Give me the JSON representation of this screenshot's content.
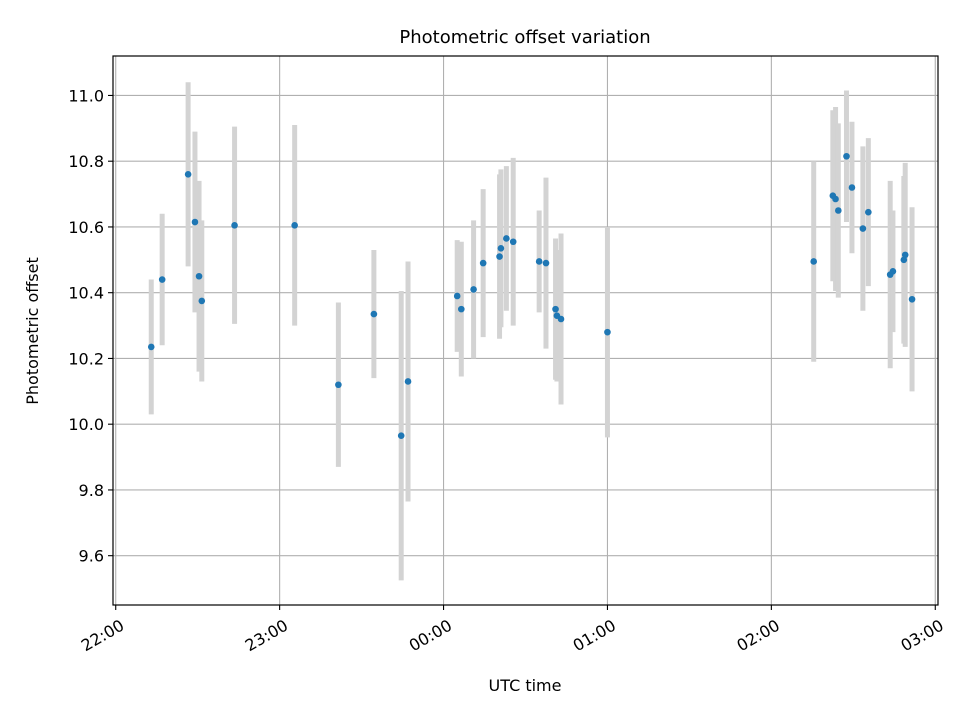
{
  "chart_data": {
    "type": "scatter",
    "title": "Photometric offset variation",
    "xlabel": "UTC time",
    "ylabel": "Photometric offset",
    "x_axis": "time (minutes after 22:00 UTC)",
    "xlim": [
      -1,
      301
    ],
    "ylim": [
      9.45,
      11.12
    ],
    "grid": true,
    "legend": "none",
    "x_ticks": [
      {
        "value": 0,
        "label": "22:00"
      },
      {
        "value": 60,
        "label": "23:00"
      },
      {
        "value": 120,
        "label": "00:00"
      },
      {
        "value": 180,
        "label": "01:00"
      },
      {
        "value": 240,
        "label": "02:00"
      },
      {
        "value": 300,
        "label": "03:00"
      }
    ],
    "y_ticks": [
      {
        "value": 9.6,
        "label": "9.6"
      },
      {
        "value": 9.8,
        "label": "9.8"
      },
      {
        "value": 10.0,
        "label": "10.0"
      },
      {
        "value": 10.2,
        "label": "10.2"
      },
      {
        "value": 10.4,
        "label": "10.4"
      },
      {
        "value": 10.6,
        "label": "10.6"
      },
      {
        "value": 10.8,
        "label": "10.8"
      },
      {
        "value": 11.0,
        "label": "11.0"
      }
    ],
    "colors": {
      "marker": "#1f77b4",
      "errorbar": "#d3d3d3",
      "grid": "#b0b0b0"
    },
    "series": [
      {
        "points": [
          {
            "x": 13.0,
            "y": 10.235,
            "err": 0.205
          },
          {
            "x": 17.0,
            "y": 10.44,
            "err": 0.2
          },
          {
            "x": 26.5,
            "y": 10.76,
            "err": 0.28
          },
          {
            "x": 29.0,
            "y": 10.615,
            "err": 0.275
          },
          {
            "x": 30.5,
            "y": 10.45,
            "err": 0.29
          },
          {
            "x": 31.5,
            "y": 10.375,
            "err": 0.245
          },
          {
            "x": 43.5,
            "y": 10.605,
            "err": 0.3
          },
          {
            "x": 65.5,
            "y": 10.605,
            "err": 0.305
          },
          {
            "x": 81.5,
            "y": 10.12,
            "err": 0.25
          },
          {
            "x": 94.5,
            "y": 10.335,
            "err": 0.195
          },
          {
            "x": 104.5,
            "y": 9.965,
            "err": 0.44
          },
          {
            "x": 107.0,
            "y": 10.13,
            "err": 0.365
          },
          {
            "x": 125.0,
            "y": 10.39,
            "err": 0.17
          },
          {
            "x": 126.5,
            "y": 10.35,
            "err": 0.205
          },
          {
            "x": 131.0,
            "y": 10.41,
            "err": 0.21
          },
          {
            "x": 134.5,
            "y": 10.49,
            "err": 0.225
          },
          {
            "x": 140.5,
            "y": 10.51,
            "err": 0.25
          },
          {
            "x": 141.0,
            "y": 10.535,
            "err": 0.24
          },
          {
            "x": 143.0,
            "y": 10.565,
            "err": 0.22
          },
          {
            "x": 145.5,
            "y": 10.555,
            "err": 0.255
          },
          {
            "x": 155.0,
            "y": 10.495,
            "err": 0.155
          },
          {
            "x": 157.5,
            "y": 10.49,
            "err": 0.26
          },
          {
            "x": 161.0,
            "y": 10.35,
            "err": 0.215
          },
          {
            "x": 161.5,
            "y": 10.33,
            "err": 0.2
          },
          {
            "x": 163.0,
            "y": 10.32,
            "err": 0.26
          },
          {
            "x": 180.0,
            "y": 10.28,
            "err": 0.32
          },
          {
            "x": 255.5,
            "y": 10.495,
            "err": 0.305
          },
          {
            "x": 262.5,
            "y": 10.695,
            "err": 0.26
          },
          {
            "x": 263.5,
            "y": 10.685,
            "err": 0.28
          },
          {
            "x": 264.5,
            "y": 10.65,
            "err": 0.265
          },
          {
            "x": 267.5,
            "y": 10.815,
            "err": 0.2
          },
          {
            "x": 269.5,
            "y": 10.72,
            "err": 0.2
          },
          {
            "x": 273.5,
            "y": 10.595,
            "err": 0.25
          },
          {
            "x": 275.5,
            "y": 10.645,
            "err": 0.225
          },
          {
            "x": 283.5,
            "y": 10.455,
            "err": 0.285
          },
          {
            "x": 284.5,
            "y": 10.465,
            "err": 0.185
          },
          {
            "x": 288.5,
            "y": 10.5,
            "err": 0.255
          },
          {
            "x": 289.0,
            "y": 10.515,
            "err": 0.28
          },
          {
            "x": 291.5,
            "y": 10.38,
            "err": 0.28
          }
        ]
      }
    ]
  }
}
